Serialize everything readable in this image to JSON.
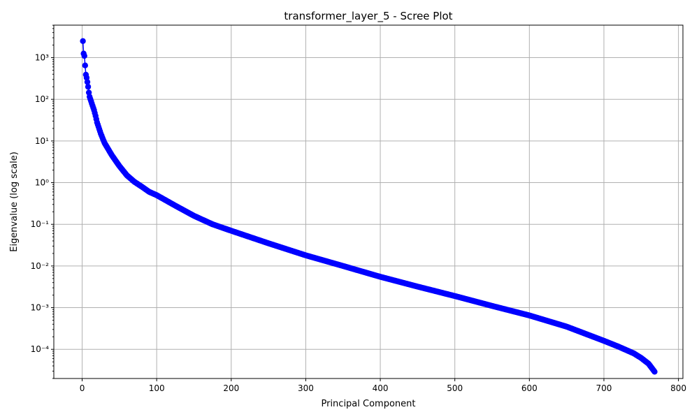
{
  "chart_data": {
    "type": "scatter",
    "title": "transformer_layer_5 - Scree Plot",
    "xlabel": "Principal Component",
    "ylabel": "Eigenvalue (log scale)",
    "xlim": [
      -38,
      806
    ],
    "ylim_log10": [
      -4.7,
      3.78
    ],
    "yscale": "log",
    "grid": true,
    "x_ticks": [
      0,
      100,
      200,
      300,
      400,
      500,
      600,
      700,
      800
    ],
    "x_tick_labels": [
      "0",
      "100",
      "200",
      "300",
      "400",
      "500",
      "600",
      "700",
      "800"
    ],
    "y_ticks_exponent": [
      -4,
      -3,
      -2,
      -1,
      0,
      1,
      2,
      3
    ],
    "y_tick_labels": [
      "10⁻⁴",
      "10⁻³",
      "10⁻²",
      "10⁻¹",
      "10⁰",
      "10¹",
      "10²",
      "10³"
    ],
    "series": [
      {
        "name": "eigenvalues",
        "color": "#0000ff",
        "marker": "circle",
        "n_components": 768,
        "x": [
          1,
          2,
          3,
          4,
          5,
          6,
          7,
          8,
          9,
          10,
          12,
          14,
          16,
          18,
          20,
          25,
          30,
          40,
          50,
          60,
          70,
          80,
          90,
          100,
          125,
          150,
          175,
          200,
          250,
          300,
          350,
          400,
          450,
          500,
          550,
          600,
          650,
          700,
          720,
          740,
          750,
          760,
          768
        ],
        "y": [
          2500,
          1250,
          1100,
          650,
          390,
          330,
          260,
          200,
          145,
          115,
          90,
          70,
          55,
          40,
          28,
          15,
          9,
          4.5,
          2.5,
          1.5,
          1.05,
          0.8,
          0.6,
          0.5,
          0.28,
          0.16,
          0.1,
          0.07,
          0.035,
          0.018,
          0.01,
          0.0055,
          0.0032,
          0.0019,
          0.0011,
          0.00065,
          0.00035,
          0.00016,
          0.000115,
          8e-05,
          6.2e-05,
          4.5e-05,
          2.9e-05
        ]
      }
    ]
  }
}
